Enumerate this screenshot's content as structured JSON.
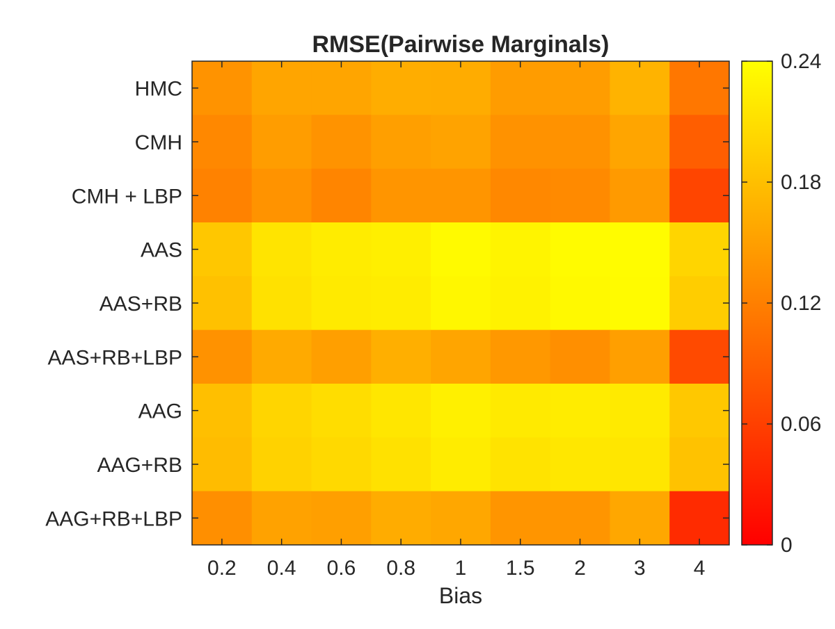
{
  "chart_data": {
    "type": "heatmap",
    "title": "RMSE(Pairwise Marginals)",
    "xlabel": "Bias",
    "ylabel": "",
    "x_categories": [
      "0.2",
      "0.4",
      "0.6",
      "0.8",
      "1",
      "1.5",
      "2",
      "3",
      "4"
    ],
    "y_categories": [
      "HMC",
      "CMH",
      "CMH + LBP",
      "AAS",
      "AAS+RB",
      "AAS+RB+LBP",
      "AAG",
      "AAG+RB",
      "AAG+RB+LBP"
    ],
    "values": [
      [
        0.138,
        0.155,
        0.155,
        0.163,
        0.162,
        0.147,
        0.148,
        0.168,
        0.112
      ],
      [
        0.128,
        0.148,
        0.138,
        0.15,
        0.153,
        0.137,
        0.137,
        0.155,
        0.088
      ],
      [
        0.122,
        0.138,
        0.125,
        0.14,
        0.14,
        0.128,
        0.13,
        0.145,
        0.065
      ],
      [
        0.187,
        0.215,
        0.222,
        0.225,
        0.235,
        0.23,
        0.236,
        0.237,
        0.2
      ],
      [
        0.182,
        0.212,
        0.22,
        0.222,
        0.232,
        0.228,
        0.234,
        0.236,
        0.193
      ],
      [
        0.137,
        0.16,
        0.15,
        0.165,
        0.155,
        0.143,
        0.135,
        0.15,
        0.07
      ],
      [
        0.18,
        0.2,
        0.208,
        0.216,
        0.226,
        0.22,
        0.222,
        0.22,
        0.188
      ],
      [
        0.177,
        0.198,
        0.204,
        0.212,
        0.222,
        0.214,
        0.217,
        0.216,
        0.183
      ],
      [
        0.135,
        0.152,
        0.15,
        0.162,
        0.157,
        0.14,
        0.14,
        0.157,
        0.04
      ]
    ],
    "colorbar": {
      "range": [
        0,
        0.24
      ],
      "ticks": [
        "0",
        "0.06",
        "0.12",
        "0.18",
        "0.24"
      ],
      "colormap": "autumn"
    }
  }
}
